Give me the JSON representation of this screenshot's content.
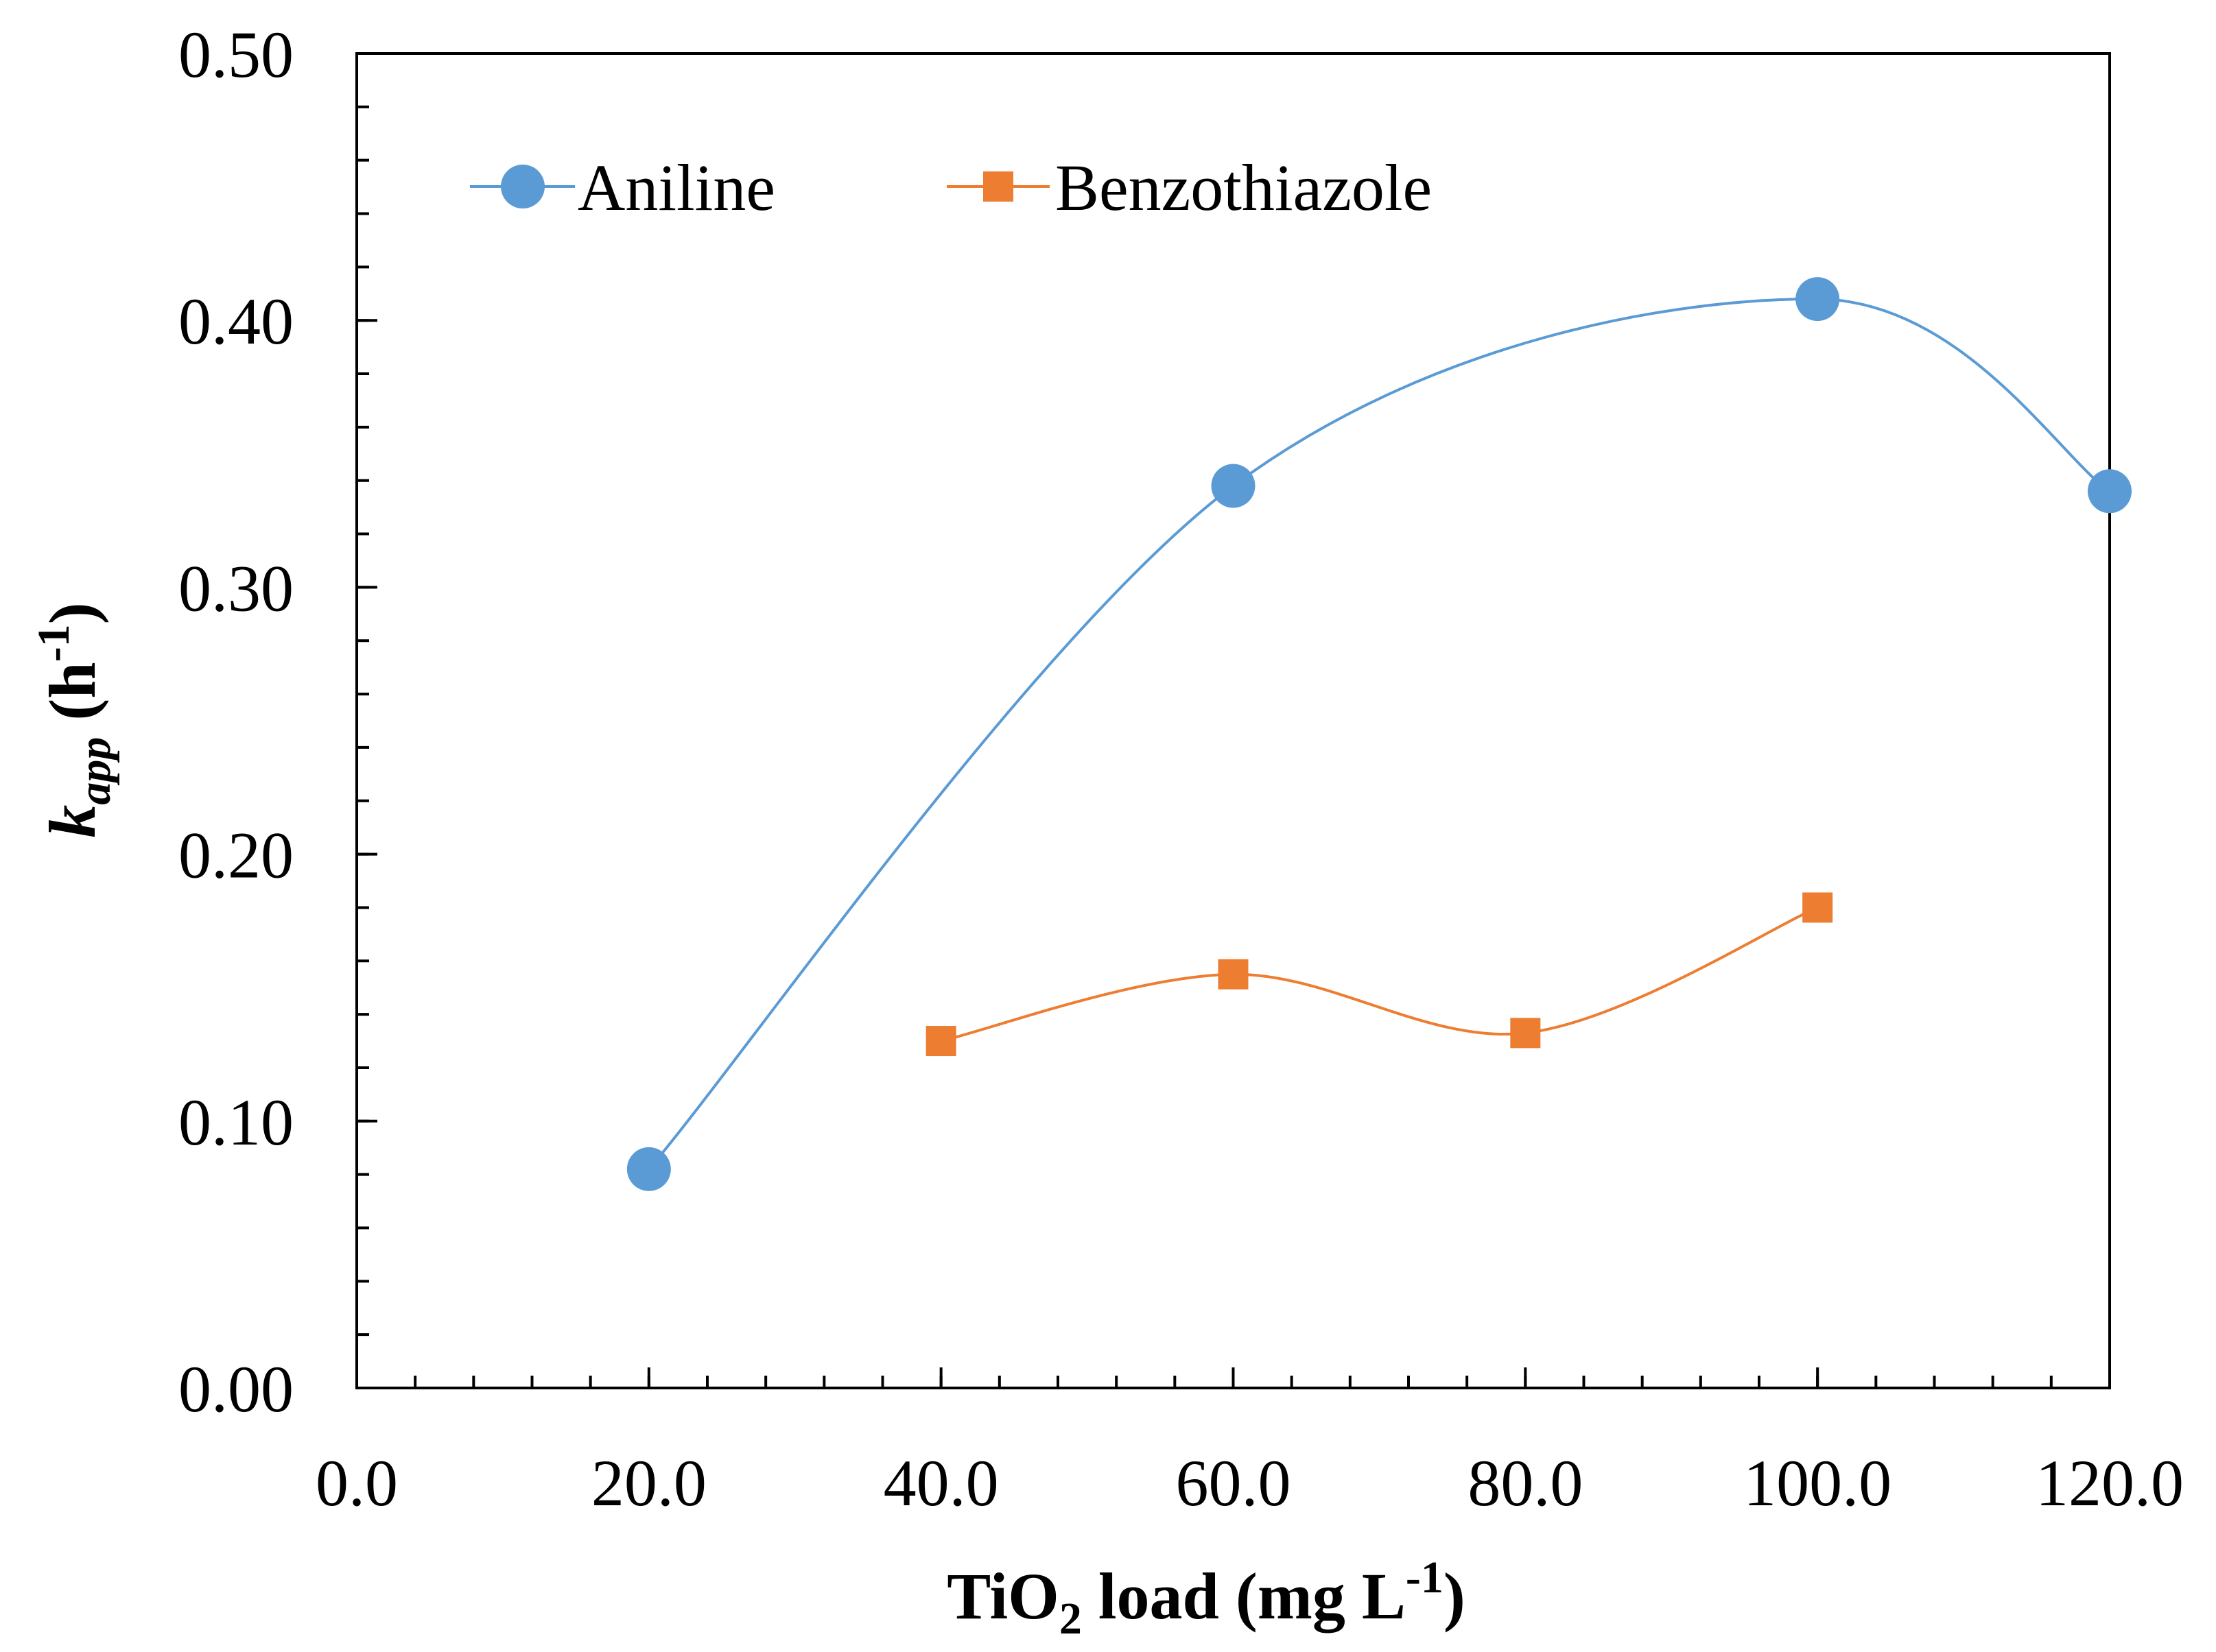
{
  "chart_data": {
    "type": "line",
    "title": "",
    "xlabel": {
      "base": "TiO",
      "sub": "2",
      "rest": " load (mg L",
      "sup": "-1",
      "close": ")"
    },
    "ylabel": {
      "base": "k",
      "sub": "app",
      "rest": " (h",
      "sup": "-1",
      "close": ")"
    },
    "xlim": [
      0,
      120
    ],
    "ylim": [
      0,
      0.5
    ],
    "x_major_ticks": [
      0,
      20,
      40,
      60,
      80,
      100,
      120
    ],
    "x_tick_labels": [
      "0.0",
      "20.0",
      "40.0",
      "60.0",
      "80.0",
      "100.0",
      "120.0"
    ],
    "y_major_ticks": [
      0,
      0.1,
      0.2,
      0.3,
      0.4,
      0.5
    ],
    "y_tick_labels": [
      "0.00",
      "0.10",
      "0.20",
      "0.30",
      "0.40",
      "0.50"
    ],
    "x_minor_step": 4,
    "y_minor_step": 0.02,
    "grid": false,
    "legend_position": "top-left",
    "series": [
      {
        "name": "Aniline",
        "color": "#5B9BD5",
        "marker": "circle",
        "smooth": true,
        "x": [
          20,
          60,
          100,
          120
        ],
        "y": [
          0.082,
          0.338,
          0.408,
          0.336
        ]
      },
      {
        "name": "Benzothiazole",
        "color": "#ED7D31",
        "marker": "square",
        "smooth": true,
        "x": [
          40,
          60,
          80,
          100
        ],
        "y": [
          0.13,
          0.155,
          0.133,
          0.18
        ]
      }
    ]
  }
}
